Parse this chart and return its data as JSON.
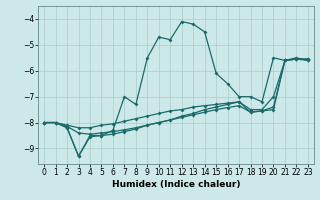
{
  "xlabel": "Humidex (Indice chaleur)",
  "background_color": "#cce8e8",
  "grid_color": "#aacccc",
  "line_color": "#1a6b6b",
  "xlim": [
    -0.5,
    23.5
  ],
  "ylim": [
    -9.6,
    -3.5
  ],
  "yticks": [
    -9,
    -8,
    -7,
    -6,
    -5,
    -4
  ],
  "xticks": [
    0,
    1,
    2,
    3,
    4,
    5,
    6,
    7,
    8,
    9,
    10,
    11,
    12,
    13,
    14,
    15,
    16,
    17,
    18,
    19,
    20,
    21,
    22,
    23
  ],
  "series": [
    {
      "x": [
        0,
        1,
        2,
        3,
        4,
        5,
        6,
        7,
        8,
        9,
        10,
        11,
        12,
        13,
        14,
        15,
        16,
        17,
        18,
        19,
        20,
        21,
        22,
        23
      ],
      "y": [
        -8.0,
        -8.0,
        -8.2,
        -9.3,
        -8.5,
        -8.5,
        -8.3,
        -7.0,
        -7.3,
        -5.5,
        -4.7,
        -4.8,
        -4.1,
        -4.2,
        -4.5,
        -6.1,
        -6.5,
        -7.0,
        -7.0,
        -7.2,
        -5.5,
        -5.6,
        -5.5,
        -5.6
      ]
    },
    {
      "x": [
        0,
        1,
        2,
        3,
        4,
        5,
        6,
        7,
        8,
        9,
        10,
        11,
        12,
        13,
        14,
        15,
        16,
        17,
        18,
        19,
        20,
        21,
        22,
        23
      ],
      "y": [
        -8.0,
        -8.0,
        -8.1,
        -8.2,
        -8.2,
        -8.1,
        -8.05,
        -7.95,
        -7.85,
        -7.75,
        -7.65,
        -7.55,
        -7.5,
        -7.4,
        -7.35,
        -7.3,
        -7.25,
        -7.2,
        -7.5,
        -7.5,
        -7.0,
        -5.6,
        -5.55,
        -5.6
      ]
    },
    {
      "x": [
        0,
        1,
        2,
        3,
        4,
        5,
        6,
        7,
        8,
        9,
        10,
        11,
        12,
        13,
        14,
        15,
        16,
        17,
        18,
        19,
        20,
        21,
        22,
        23
      ],
      "y": [
        -8.0,
        -8.0,
        -8.15,
        -8.4,
        -8.45,
        -8.4,
        -8.35,
        -8.28,
        -8.2,
        -8.1,
        -8.0,
        -7.9,
        -7.8,
        -7.7,
        -7.6,
        -7.5,
        -7.42,
        -7.35,
        -7.6,
        -7.55,
        -7.4,
        -5.6,
        -5.55,
        -5.55
      ]
    },
    {
      "x": [
        0,
        1,
        2,
        3,
        4,
        5,
        6,
        7,
        8,
        9,
        10,
        11,
        12,
        13,
        14,
        15,
        16,
        17,
        18,
        19,
        20,
        21,
        22,
        23
      ],
      "y": [
        -8.0,
        -8.0,
        -8.2,
        -9.3,
        -8.55,
        -8.5,
        -8.45,
        -8.35,
        -8.25,
        -8.1,
        -8.0,
        -7.9,
        -7.75,
        -7.65,
        -7.5,
        -7.4,
        -7.3,
        -7.2,
        -7.6,
        -7.55,
        -7.5,
        -5.6,
        -5.55,
        -5.55
      ]
    }
  ]
}
